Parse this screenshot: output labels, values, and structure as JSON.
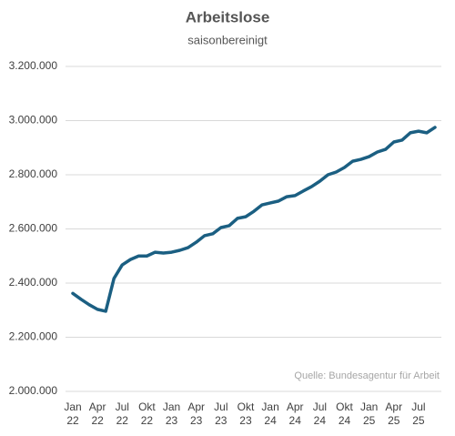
{
  "chart_data": {
    "type": "line",
    "title": "Arbeitslose",
    "subtitle": "saisonbereinigt",
    "source": "Quelle: Bundesagentur für Arbeit",
    "categories": [
      "Jan 22",
      null,
      null,
      "Apr 22",
      null,
      null,
      "Jul 22",
      null,
      null,
      "Okt 22",
      null,
      null,
      "Jan 23",
      null,
      null,
      "Apr 23",
      null,
      null,
      "Jul 23",
      null,
      null,
      "Okt 23",
      null,
      null,
      "Jan 24",
      null,
      null,
      "Apr 24",
      null,
      null,
      "Jul 24",
      null,
      null,
      "Okt 24",
      null,
      null,
      "Jan 25",
      null,
      null,
      "Apr 25",
      null,
      null,
      "Jul 25",
      null,
      null
    ],
    "series": [
      {
        "color": "#1b5f82",
        "values": [
          2362000,
          2340000,
          2320000,
          2303000,
          2296000,
          2417000,
          2467000,
          2487000,
          2500000,
          2500000,
          2514000,
          2511000,
          2514000,
          2521000,
          2531000,
          2551000,
          2575000,
          2582000,
          2605000,
          2612000,
          2639000,
          2645000,
          2665000,
          2689000,
          2696000,
          2703000,
          2719000,
          2723000,
          2740000,
          2756000,
          2776000,
          2800000,
          2810000,
          2827000,
          2850000,
          2857000,
          2867000,
          2884000,
          2894000,
          2921000,
          2928000,
          2955000,
          2961000,
          2955000,
          2975000
        ]
      }
    ],
    "ylim": [
      2000000,
      3200000
    ],
    "yticks": [
      {
        "value": 2000000,
        "label": "2.000.000"
      },
      {
        "value": 2200000,
        "label": "2.200.000"
      },
      {
        "value": 2400000,
        "label": "2.400.000"
      },
      {
        "value": 2600000,
        "label": "2.600.000"
      },
      {
        "value": 2800000,
        "label": "2.800.000"
      },
      {
        "value": 3000000,
        "label": "3.000.000"
      },
      {
        "value": 3200000,
        "label": "3.200.000"
      }
    ],
    "grid": true
  }
}
